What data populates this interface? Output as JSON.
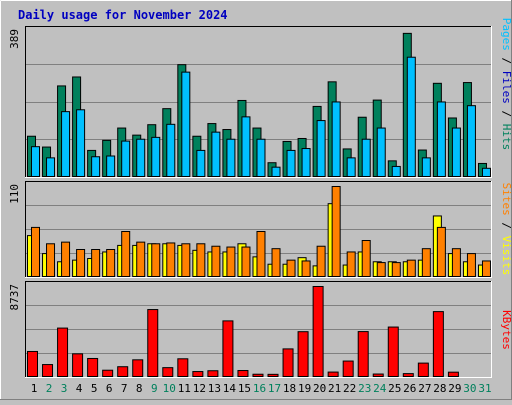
{
  "chart_data": [
    {
      "type": "bar",
      "title": "Daily usage for November 2024",
      "categories": [
        "1",
        "2",
        "3",
        "4",
        "5",
        "6",
        "7",
        "8",
        "9",
        "10",
        "11",
        "12",
        "13",
        "14",
        "15",
        "16",
        "17",
        "18",
        "19",
        "20",
        "21",
        "22",
        "23",
        "24",
        "25",
        "26",
        "27",
        "28",
        "29",
        "30",
        "31"
      ],
      "weekend_days": [
        "2",
        "3",
        "9",
        "10",
        "16",
        "17",
        "23",
        "24",
        "30",
        "31"
      ],
      "ymax_label": "389",
      "ylim": [
        0,
        389
      ],
      "grid": true,
      "legend": [
        "Pages",
        "Files",
        "Hits"
      ],
      "series": [
        {
          "name": "Hits",
          "color": "#00805c",
          "values": [
            108,
            79,
            243,
            267,
            70,
            97,
            130,
            111,
            139,
            182,
            300,
            108,
            142,
            126,
            204,
            130,
            37,
            94,
            102,
            188,
            254,
            74,
            159,
            205,
            42,
            384,
            71,
            250,
            157,
            252,
            35
          ]
        },
        {
          "name": "Files",
          "color": "#00c0ff",
          "values": [
            80,
            50,
            174,
            179,
            53,
            55,
            95,
            100,
            105,
            140,
            280,
            70,
            119,
            100,
            160,
            100,
            25,
            70,
            75,
            150,
            200,
            50,
            100,
            130,
            27,
            320,
            50,
            200,
            130,
            190,
            22
          ]
        },
        {
          "name": "Pages",
          "color": "#0000c0",
          "values": [
            0,
            0,
            0,
            0,
            0,
            0,
            0,
            0,
            0,
            0,
            0,
            0,
            0,
            0,
            0,
            0,
            0,
            0,
            0,
            0,
            0,
            0,
            0,
            0,
            0,
            0,
            0,
            0,
            0,
            0,
            0
          ]
        }
      ]
    },
    {
      "type": "bar",
      "ymax_label": "110",
      "ylim": [
        0,
        110
      ],
      "grid": true,
      "legend": [
        "Sites",
        "Visits"
      ],
      "series": [
        {
          "name": "Visits",
          "color": "#ffff00",
          "values": [
            50,
            28,
            18,
            20,
            22,
            30,
            38,
            38,
            40,
            40,
            38,
            32,
            30,
            30,
            40,
            24,
            15,
            15,
            23,
            13,
            89,
            14,
            30,
            18,
            18,
            18,
            20,
            74,
            28,
            18,
            14
          ]
        },
        {
          "name": "Sites",
          "color": "#ff8000",
          "values": [
            60,
            40,
            42,
            33,
            33,
            33,
            55,
            42,
            40,
            41,
            40,
            40,
            37,
            36,
            36,
            55,
            34,
            20,
            19,
            37,
            110,
            30,
            44,
            17,
            17,
            20,
            34,
            60,
            34,
            28,
            19
          ]
        }
      ]
    },
    {
      "type": "bar",
      "ymax_label": "8737",
      "ylim": [
        0,
        8737
      ],
      "grid": true,
      "legend": [
        "KBytes"
      ],
      "series": [
        {
          "name": "KBytes",
          "color": "#ff0000",
          "values": [
            2430,
            1160,
            4700,
            2200,
            1750,
            610,
            950,
            1620,
            6500,
            860,
            1720,
            480,
            560,
            5400,
            580,
            220,
            210,
            2680,
            4350,
            8737,
            430,
            1500,
            4360,
            240,
            4800,
            280,
            1300,
            6300,
            420,
            0,
            0
          ]
        }
      ]
    }
  ]
}
